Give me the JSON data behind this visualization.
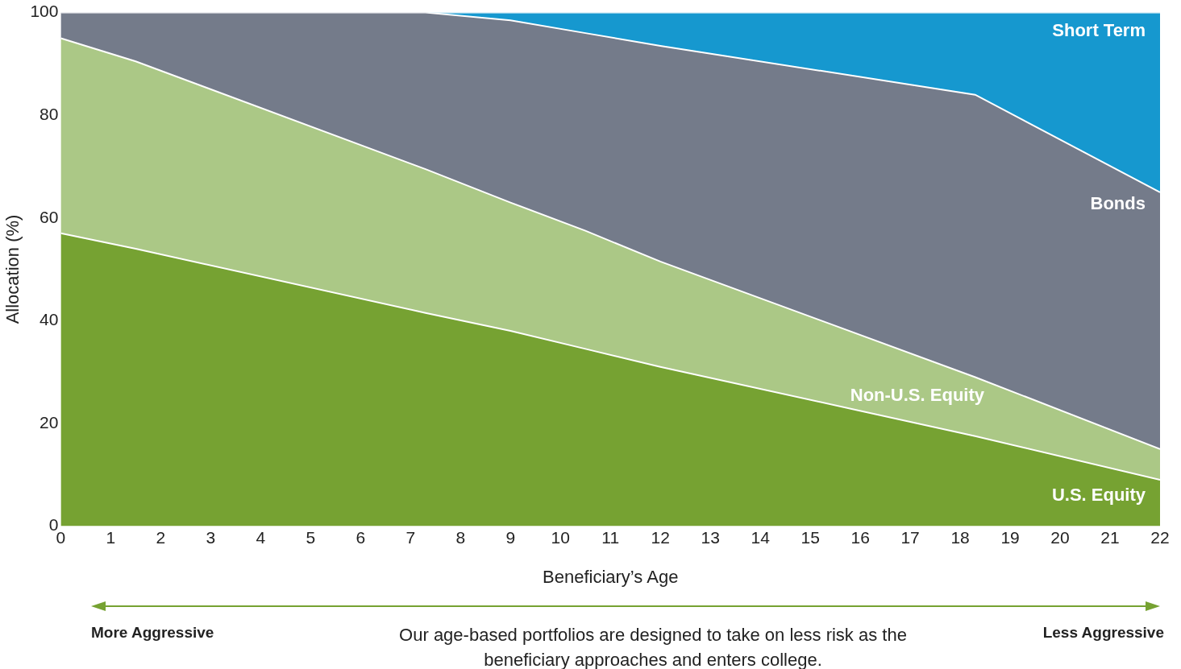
{
  "chart_data": {
    "type": "area",
    "stacked": true,
    "xlabel": "Beneficiary’s Age",
    "ylabel": "Allocation (%)",
    "x": [
      0,
      1.5,
      7.3,
      9,
      10.5,
      12,
      18.3,
      22
    ],
    "xlim": [
      0,
      22
    ],
    "xticks": [
      0,
      1,
      2,
      3,
      4,
      5,
      6,
      7,
      8,
      9,
      10,
      11,
      12,
      13,
      14,
      15,
      16,
      17,
      18,
      19,
      20,
      21,
      22
    ],
    "ylim": [
      0,
      100
    ],
    "yticks": [
      0,
      20,
      40,
      60,
      80,
      100
    ],
    "grid": false,
    "legend": false,
    "series": [
      {
        "name": "U.S. Equity",
        "color": "#76a232",
        "values": [
          57,
          54,
          41.5,
          38,
          34.5,
          31,
          17.5,
          9
        ]
      },
      {
        "name": "Non-U.S. Equity",
        "color": "#abc886",
        "values": [
          38,
          36.5,
          28,
          25,
          23,
          20.5,
          11.5,
          6
        ]
      },
      {
        "name": "Bonds",
        "color": "#747b8a",
        "values": [
          5,
          9.5,
          30.5,
          35.5,
          38.5,
          42,
          55,
          50
        ]
      },
      {
        "name": "Short Term",
        "color": "#1698cf",
        "values": [
          0,
          0,
          0,
          1.5,
          4,
          6.5,
          16,
          35
        ]
      }
    ],
    "annotations": [
      "More Aggressive",
      "Less Aggressive",
      "Our age-based portfolios are designed to take on less risk as the beneficiary approaches and enters college."
    ]
  }
}
